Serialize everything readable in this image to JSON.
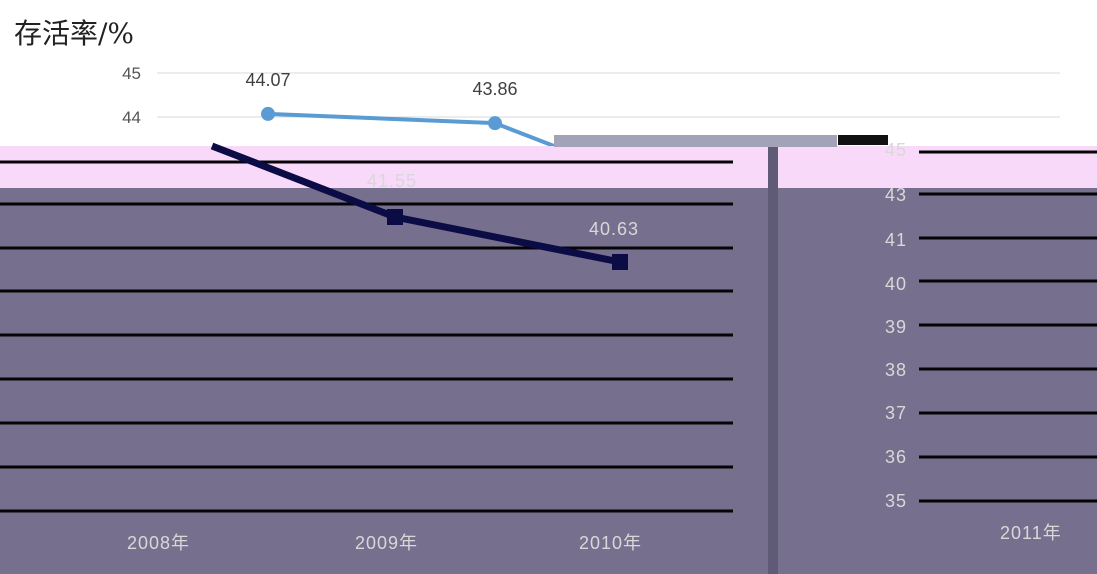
{
  "chart_data": {
    "type": "line",
    "title": "",
    "ylabel": "存活率/%",
    "xlabel": "",
    "ylim": [
      44,
      45
    ],
    "y_ticks": [
      45,
      44
    ],
    "grid": true,
    "series": [
      {
        "values": [
          44.07,
          43.86
        ],
        "data_labels": [
          "44.07",
          "43.86"
        ],
        "color": "#5b9bd5"
      }
    ]
  },
  "colors": {
    "background": "#ffffff",
    "line": "#5b9bd5",
    "gridline": "#d9d9d9",
    "corrupt_panel": "#76708e",
    "corrupt_band": "#f9d9f9",
    "corrupt_line": "#0b0b45"
  }
}
